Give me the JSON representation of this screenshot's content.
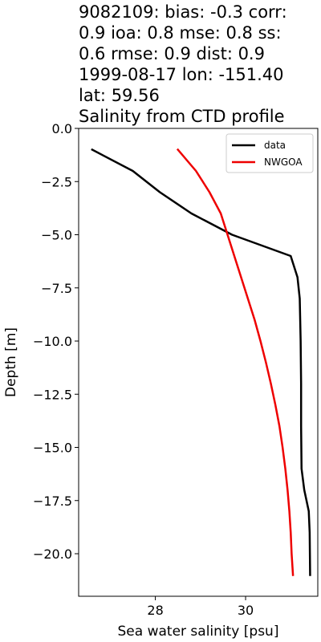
{
  "chart_data": {
    "type": "line",
    "title_lines": [
      "9082109: bias: -0.3  corr:",
      "0.9  ioa: 0.8  mse: 0.8  ss:",
      "0.6  rmse: 0.9  dist: 0.9",
      "1999-08-17 lon: -151.40",
      "lat: 59.56",
      "Salinity from CTD profile"
    ],
    "xlabel": "Sea water salinity [psu]",
    "ylabel": "Depth [m]",
    "xlim": [
      26.3,
      31.6
    ],
    "ylim": [
      -22.0,
      0.0
    ],
    "xticks": [
      28,
      30
    ],
    "yticks": [
      0.0,
      -2.5,
      -5.0,
      -7.5,
      -10.0,
      -12.5,
      -15.0,
      -17.5,
      -20.0
    ],
    "ytick_labels": [
      "0.0",
      "−2.5",
      "−5.0",
      "−7.5",
      "−10.0",
      "−12.5",
      "−15.0",
      "−17.5",
      "−20.0"
    ],
    "xtick_labels": [
      "28",
      "30"
    ],
    "grid": false,
    "legend_position": "top-right",
    "series": [
      {
        "name": "data",
        "color": "#000000",
        "points": [
          [
            26.6,
            -1.0
          ],
          [
            27.5,
            -2.0
          ],
          [
            28.1,
            -3.0
          ],
          [
            28.8,
            -4.0
          ],
          [
            29.7,
            -5.0
          ],
          [
            31.0,
            -6.0
          ],
          [
            31.15,
            -7.0
          ],
          [
            31.2,
            -8.0
          ],
          [
            31.22,
            -10.0
          ],
          [
            31.23,
            -12.0
          ],
          [
            31.23,
            -14.0
          ],
          [
            31.24,
            -16.0
          ],
          [
            31.3,
            -17.0
          ],
          [
            31.4,
            -18.0
          ],
          [
            31.42,
            -19.0
          ],
          [
            31.43,
            -21.0
          ]
        ]
      },
      {
        "name": "NWGOA",
        "color": "#ee0000",
        "points": [
          [
            28.5,
            -1.0
          ],
          [
            28.9,
            -2.0
          ],
          [
            29.2,
            -3.0
          ],
          [
            29.45,
            -4.0
          ],
          [
            29.6,
            -5.0
          ],
          [
            29.75,
            -6.0
          ],
          [
            29.9,
            -7.0
          ],
          [
            30.05,
            -8.0
          ],
          [
            30.2,
            -9.0
          ],
          [
            30.33,
            -10.0
          ],
          [
            30.45,
            -11.0
          ],
          [
            30.56,
            -12.0
          ],
          [
            30.66,
            -13.0
          ],
          [
            30.75,
            -14.0
          ],
          [
            30.82,
            -15.0
          ],
          [
            30.88,
            -16.0
          ],
          [
            30.93,
            -17.0
          ],
          [
            30.97,
            -18.0
          ],
          [
            31.0,
            -19.0
          ],
          [
            31.02,
            -20.0
          ],
          [
            31.05,
            -21.0
          ]
        ]
      }
    ]
  }
}
